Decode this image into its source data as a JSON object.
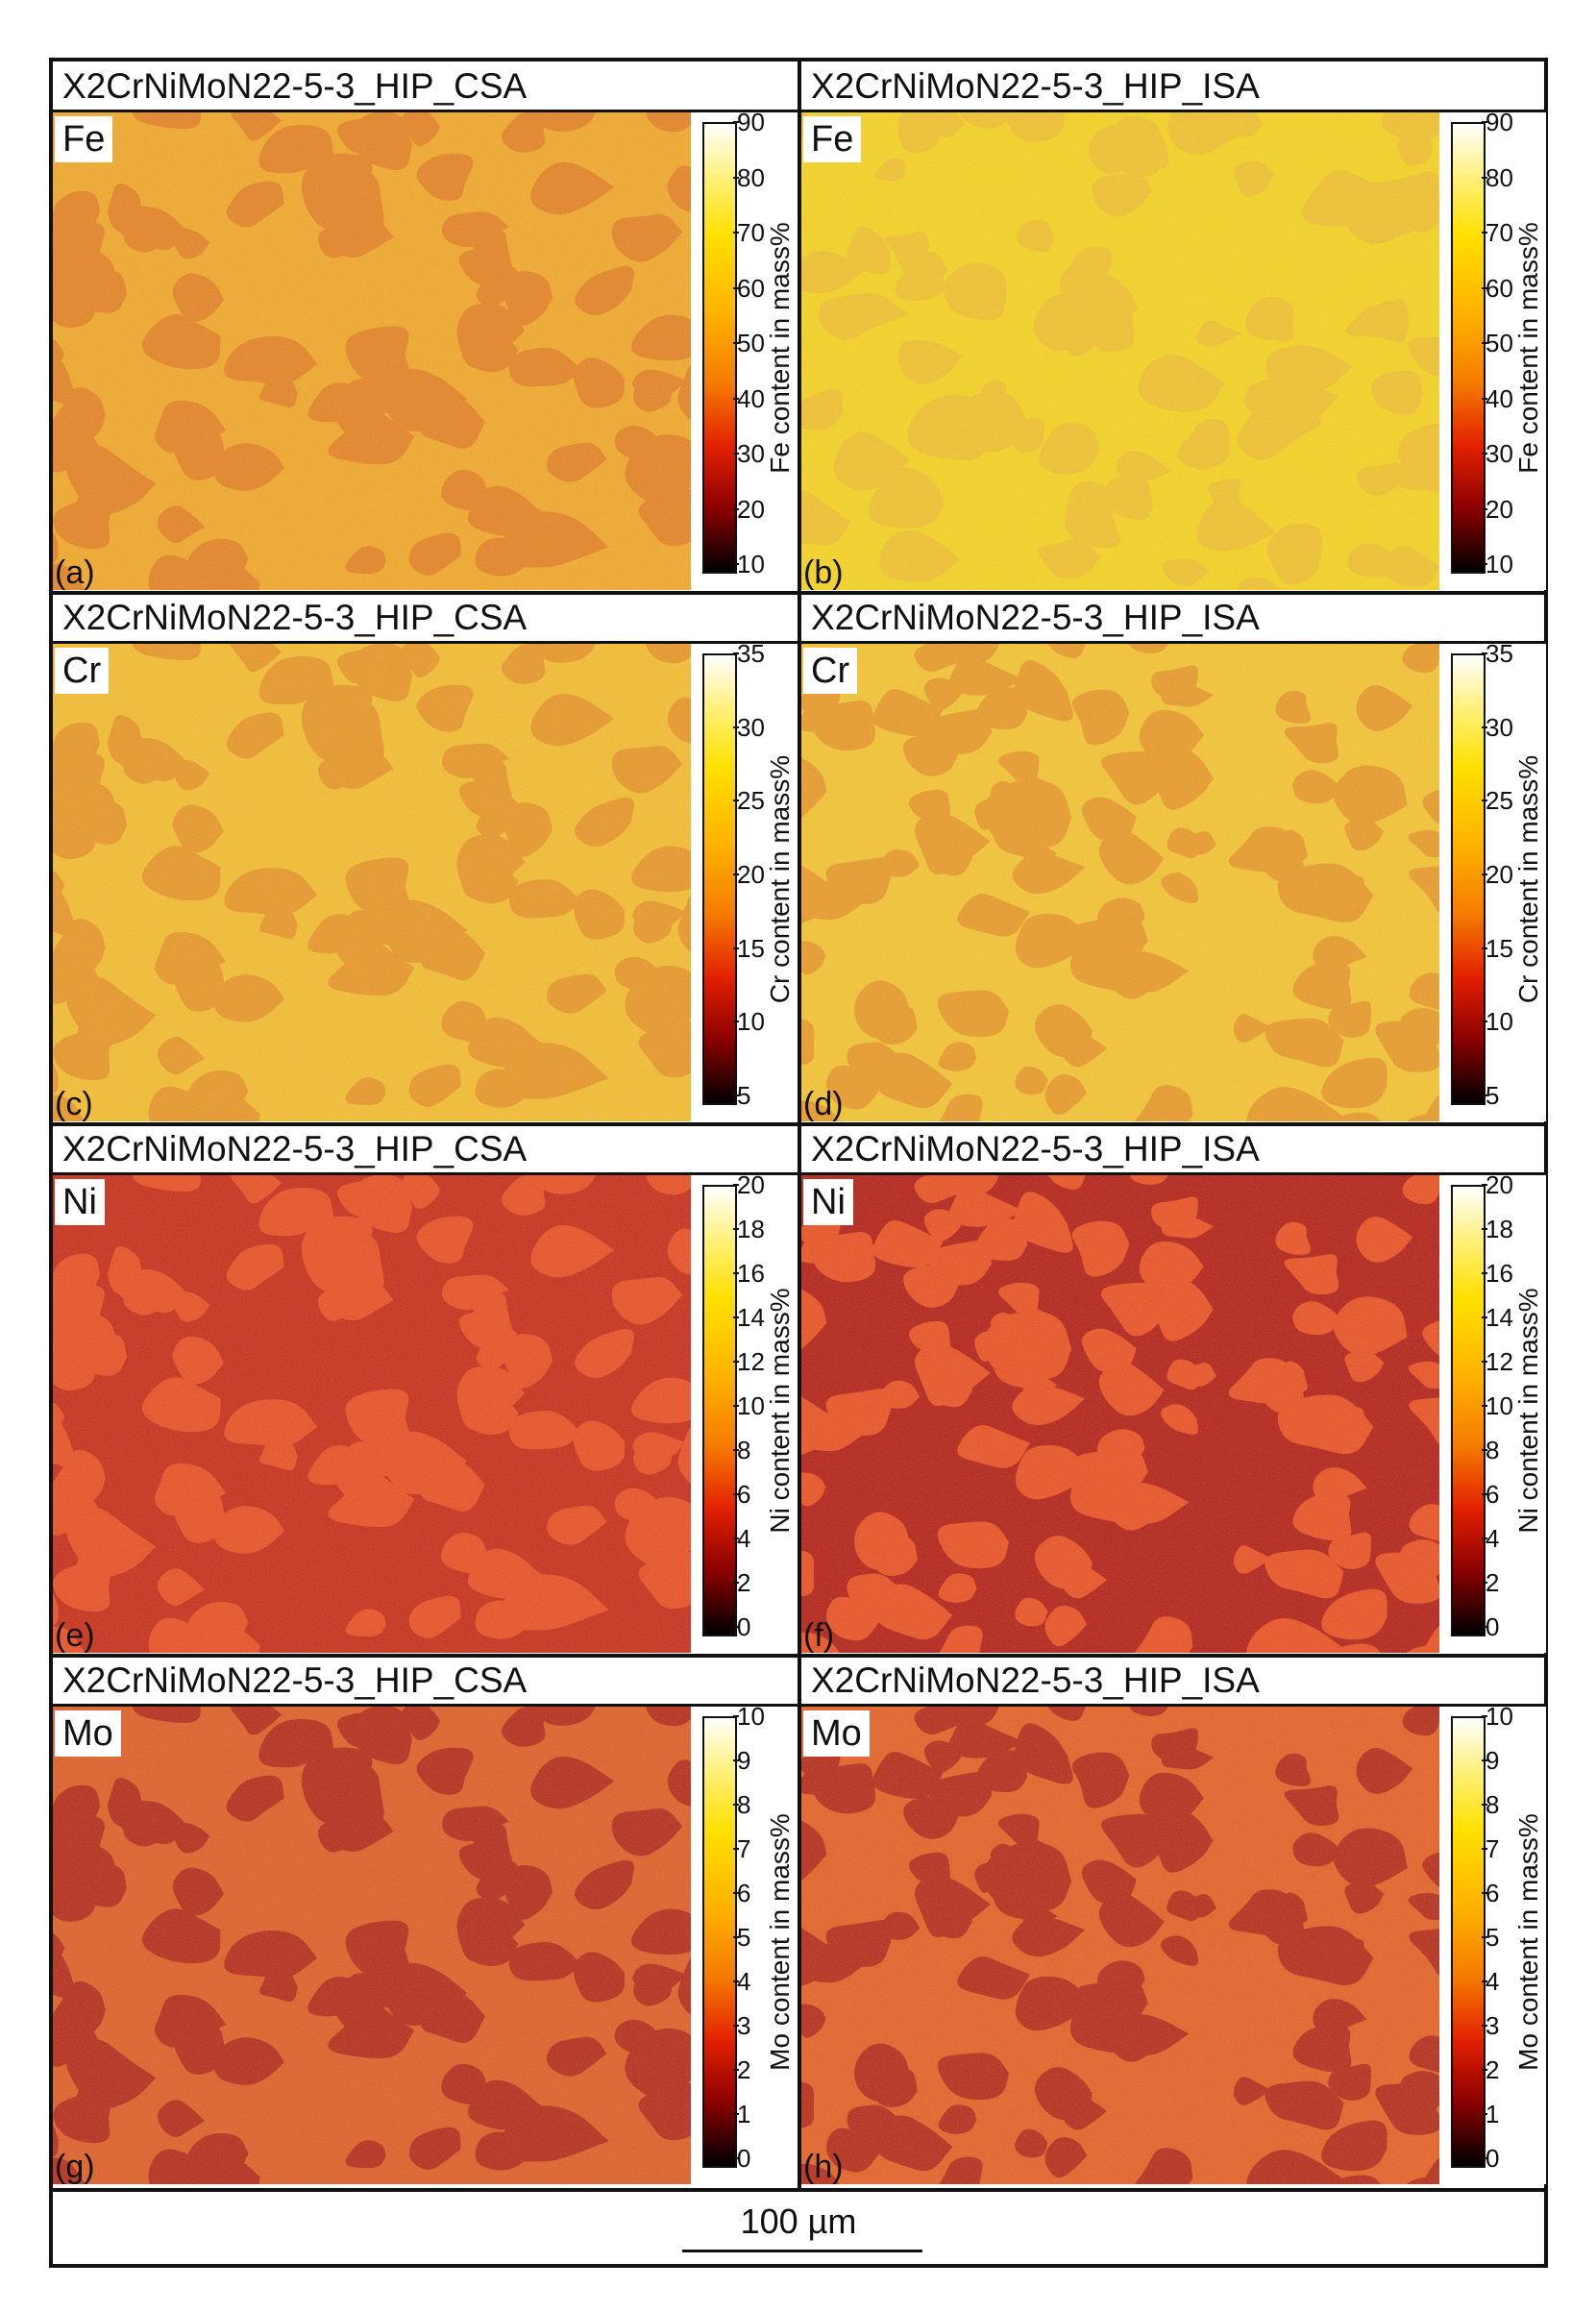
{
  "figure": {
    "scalebar": "100 µm",
    "panels": [
      {
        "id": "a",
        "title": "X2CrNiMoN22-5-3_HIP_CSA",
        "element": "Fe",
        "letter": "(a)",
        "cbar_label": "Fe content in mass%",
        "ticks": [
          "90",
          "80",
          "70",
          "60",
          "50",
          "40",
          "30",
          "20",
          "10"
        ],
        "bg": "#f7a81f",
        "fg": "#e9811a",
        "pattern": 1
      },
      {
        "id": "b",
        "title": "X2CrNiMoN22-5-3_HIP_ISA",
        "element": "Fe",
        "letter": "(b)",
        "cbar_label": "Fe content in mass%",
        "ticks": [
          "90",
          "80",
          "70",
          "60",
          "50",
          "40",
          "30",
          "20",
          "10"
        ],
        "bg": "#fbd617",
        "fg": "#f6c324",
        "pattern": 2
      },
      {
        "id": "c",
        "title": "X2CrNiMoN22-5-3_HIP_CSA",
        "element": "Cr",
        "letter": "(c)",
        "cbar_label": "Cr content in mass%",
        "ticks": [
          "35",
          "30",
          "25",
          "20",
          "15",
          "10",
          "5"
        ],
        "bg": "#f9bf27",
        "fg": "#ee961e",
        "pattern": 1
      },
      {
        "id": "d",
        "title": "X2CrNiMoN22-5-3_HIP_ISA",
        "element": "Cr",
        "letter": "(d)",
        "cbar_label": "Cr content in mass%",
        "ticks": [
          "35",
          "30",
          "25",
          "20",
          "15",
          "10",
          "5"
        ],
        "bg": "#f9c629",
        "fg": "#ee9a1f",
        "pattern": 3
      },
      {
        "id": "e",
        "title": "X2CrNiMoN22-5-3_HIP_CSA",
        "element": "Ni",
        "letter": "(e)",
        "cbar_label": "Ni content in mass%",
        "ticks": [
          "20",
          "18",
          "16",
          "14",
          "12",
          "10",
          "8",
          "6",
          "4",
          "2",
          "0"
        ],
        "bg": "#c9260e",
        "fg": "#ee4a1a",
        "pattern": 1
      },
      {
        "id": "f",
        "title": "X2CrNiMoN22-5-3_HIP_ISA",
        "element": "Ni",
        "letter": "(f)",
        "cbar_label": "Ni content in mass%",
        "ticks": [
          "20",
          "18",
          "16",
          "14",
          "12",
          "10",
          "8",
          "6",
          "4",
          "2",
          "0"
        ],
        "bg": "#b5180c",
        "fg": "#ef4c19",
        "pattern": 3
      },
      {
        "id": "g",
        "title": "X2CrNiMoN22-5-3_HIP_CSA",
        "element": "Mo",
        "letter": "(g)",
        "cbar_label": "Mo content in mass%",
        "ticks": [
          "10",
          "9",
          "8",
          "7",
          "6",
          "5",
          "4",
          "3",
          "2",
          "1",
          "0"
        ],
        "bg": "#e25a1d",
        "fg": "#b8240f",
        "pattern": 1
      },
      {
        "id": "h",
        "title": "X2CrNiMoN22-5-3_HIP_ISA",
        "element": "Mo",
        "letter": "(h)",
        "cbar_label": "Mo content in mass%",
        "ticks": [
          "10",
          "9",
          "8",
          "7",
          "6",
          "5",
          "4",
          "3",
          "2",
          "1",
          "0"
        ],
        "bg": "#ea5c1c",
        "fg": "#b8240f",
        "pattern": 3
      }
    ]
  }
}
